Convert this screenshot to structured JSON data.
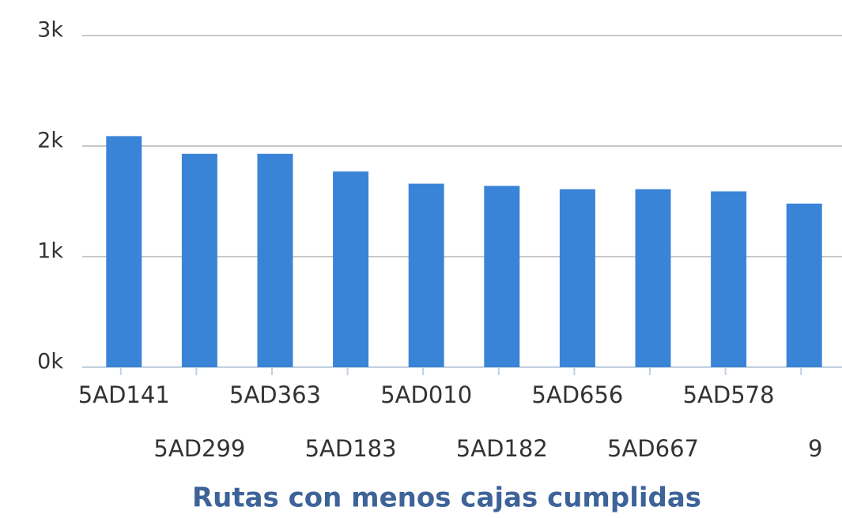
{
  "chart_data": {
    "type": "bar",
    "title": "Rutas con menos cajas cumplidas",
    "categories": [
      "5AD141",
      "5AD299",
      "5AD363",
      "5AD183",
      "5AD010",
      "5AD182",
      "5AD656",
      "5AD667",
      "5AD578",
      "9"
    ],
    "values": [
      2090,
      1930,
      1930,
      1770,
      1660,
      1640,
      1610,
      1610,
      1590,
      1480
    ],
    "color": "#3a84d8",
    "ylim": [
      0,
      3000
    ],
    "yticks": [
      {
        "value": 0,
        "label": "0k"
      },
      {
        "value": 1000,
        "label": "1k"
      },
      {
        "value": 2000,
        "label": "2k"
      },
      {
        "value": 3000,
        "label": "3k"
      }
    ],
    "grid": true
  }
}
